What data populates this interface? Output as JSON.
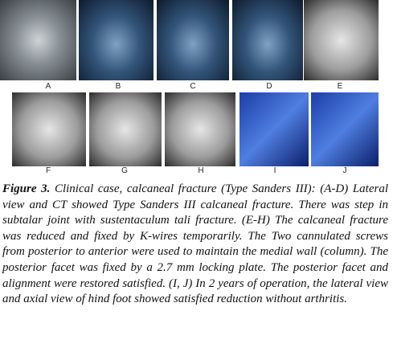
{
  "figure": {
    "panels": [
      "A",
      "B",
      "C",
      "D",
      "E",
      "F",
      "G",
      "H",
      "I",
      "J"
    ],
    "caption": {
      "label": "Figure 3.",
      "text": "Clinical case, calcaneal fracture (Type Sanders III): (A-D) Lateral view and CT showed Type Sanders III calcaneal fracture. There was step in subtalar joint with sustentaculum tali fracture. (E-H) The calcaneal fracture was reduced and fixed by K-wires temporarily. The Two cannulated screws from posterior to anterior were used to maintain the medial wall (column). The posterior facet was fixed by a 2.7 mm locking plate. The posterior facet and alignment were restored satisfied. (I, J) In 2 years of operation, the lateral view and axial view of hind foot showed satisfied reduction without arthritis."
    }
  }
}
